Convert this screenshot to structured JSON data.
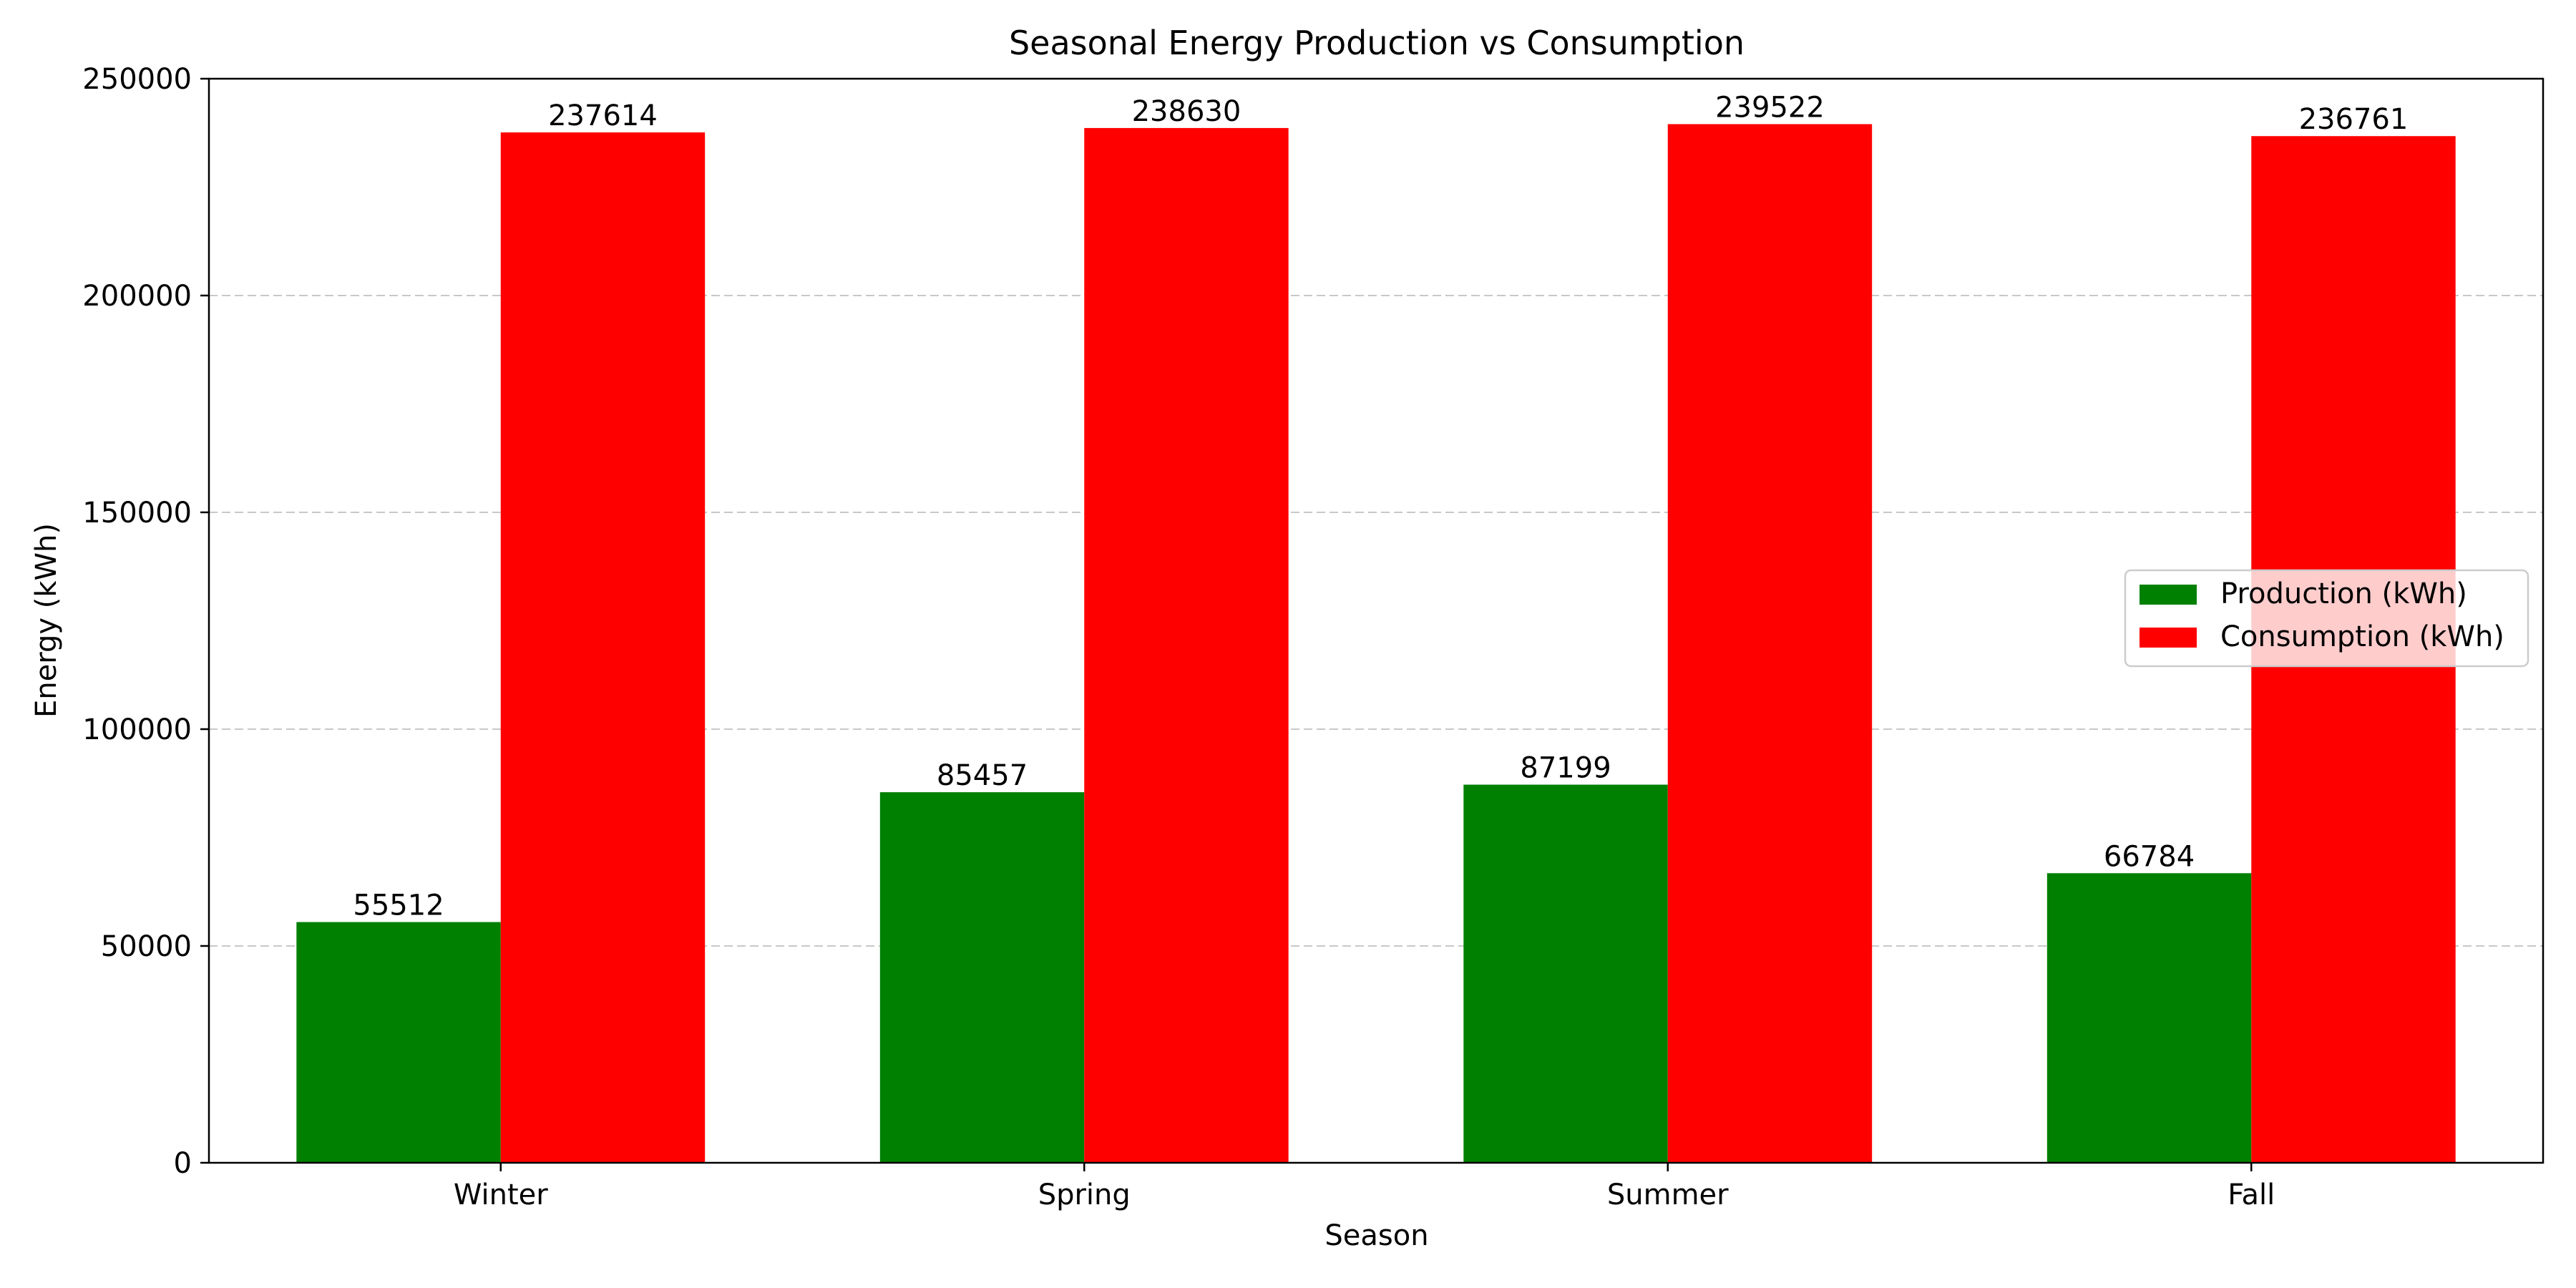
{
  "chart_data": {
    "type": "bar",
    "title": "Seasonal Energy Production vs Consumption",
    "xlabel": "Season",
    "ylabel": "Energy (kWh)",
    "categories": [
      "Winter",
      "Spring",
      "Summer",
      "Fall"
    ],
    "series": [
      {
        "name": "Production (kWh)",
        "color": "#008000",
        "values": [
          55512,
          85457,
          87199,
          66784
        ]
      },
      {
        "name": "Consumption (kWh)",
        "color": "#ff0000",
        "values": [
          237614,
          238630,
          239522,
          236761
        ]
      }
    ],
    "ylim": [
      0,
      250000
    ],
    "yticks": [
      0,
      50000,
      100000,
      150000,
      200000,
      250000
    ],
    "grid": {
      "y": true,
      "style": "dashed"
    },
    "legend_position": "center-right",
    "data_labels": true
  }
}
